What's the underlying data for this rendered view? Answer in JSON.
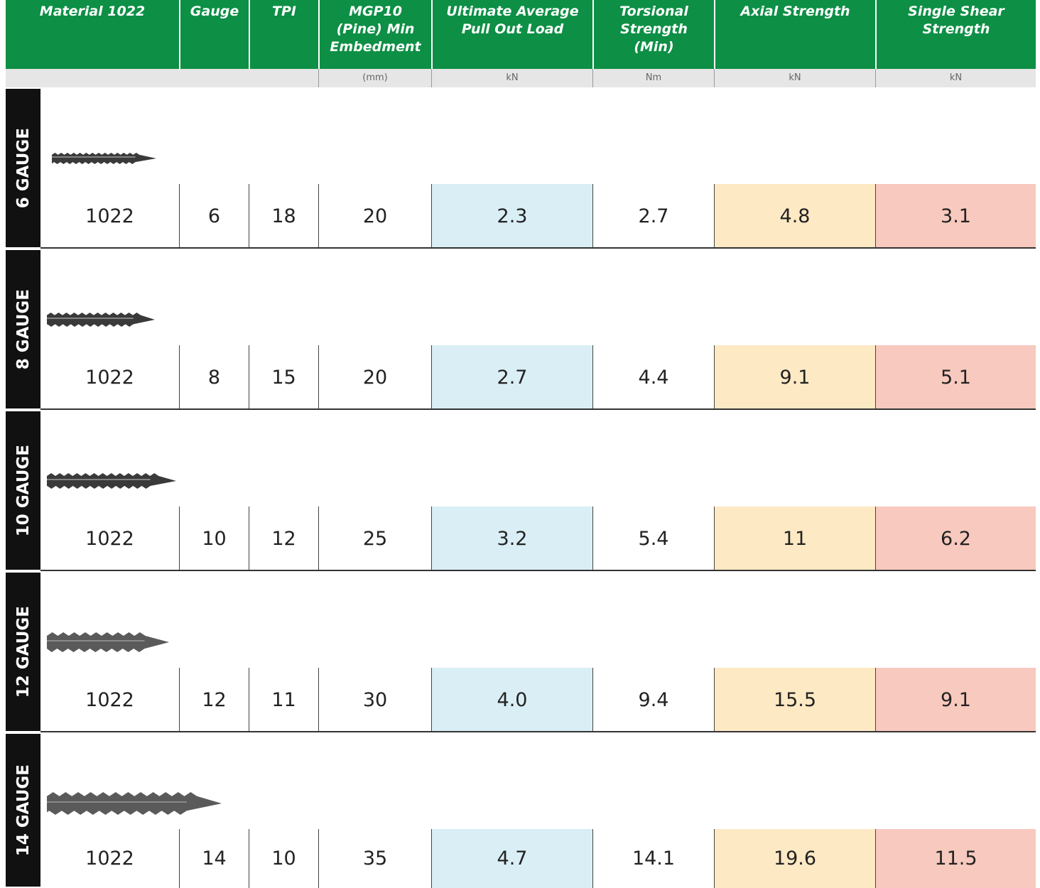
{
  "header": {
    "columns": [
      {
        "title": "Material 1022"
      },
      {
        "title": "Gauge"
      },
      {
        "title": "TPI"
      },
      {
        "title": "MGP10 (Pine) Min Embedment",
        "unit": "(mm)"
      },
      {
        "title": "Ultimate Average Pull Out Load",
        "unit": "kN"
      },
      {
        "title": "Torsional Strength (Min)",
        "unit": "Nm"
      },
      {
        "title": "Axial Strength",
        "unit": "kN"
      },
      {
        "title": "Single Shear Strength",
        "unit": "kN"
      }
    ]
  },
  "table": {
    "rows": [
      {
        "label": "6 GAUGE",
        "cells": [
          "1022",
          "6",
          "18",
          "20",
          "2.3",
          "2.7",
          "4.8",
          "3.1"
        ]
      },
      {
        "label": "8 GAUGE",
        "cells": [
          "1022",
          "8",
          "15",
          "20",
          "2.7",
          "4.4",
          "9.1",
          "5.1"
        ]
      },
      {
        "label": "10 GAUGE",
        "cells": [
          "1022",
          "10",
          "12",
          "25",
          "3.2",
          "5.4",
          "11",
          "6.2"
        ]
      },
      {
        "label": "12 GAUGE",
        "cells": [
          "1022",
          "12",
          "11",
          "30",
          "4.0",
          "9.4",
          "15.5",
          "9.1"
        ]
      },
      {
        "label": "14 GAUGE",
        "cells": [
          "1022",
          "14",
          "10",
          "35",
          "4.7",
          "14.1",
          "19.6",
          "11.5"
        ]
      }
    ]
  }
}
